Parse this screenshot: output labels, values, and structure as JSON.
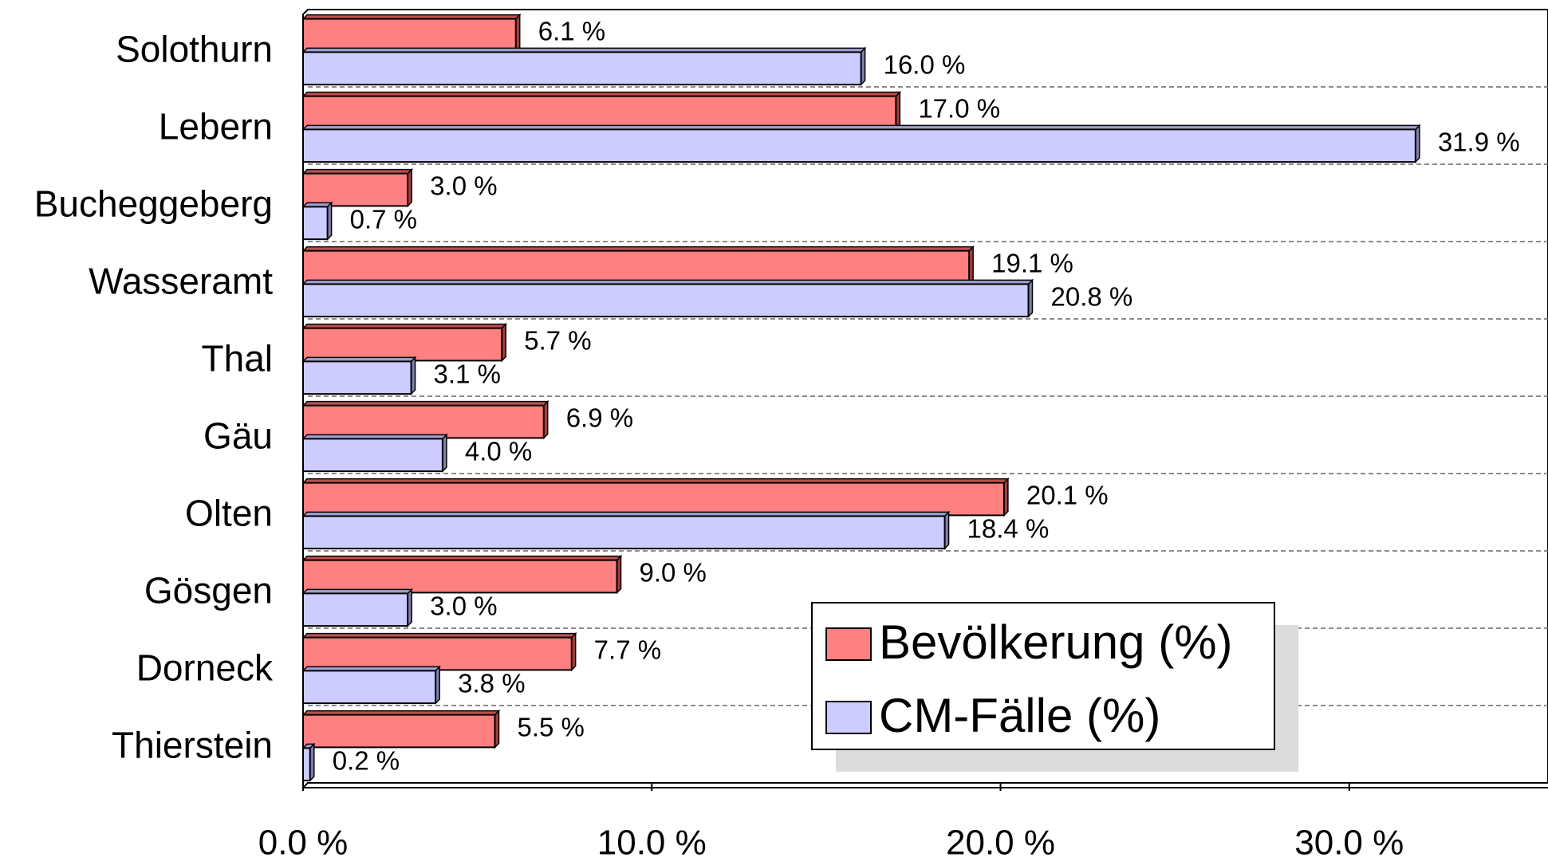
{
  "chart_data": {
    "type": "bar",
    "orientation": "horizontal",
    "categories": [
      "Solothurn",
      "Lebern",
      "Bucheggeberg",
      "Wasseramt",
      "Thal",
      "Gäu",
      "Olten",
      "Gösgen",
      "Dorneck",
      "Thierstein"
    ],
    "series": [
      {
        "name": "Bevölkerung (%)",
        "color": "#ff8080",
        "values": [
          6.1,
          17.0,
          3.0,
          19.1,
          5.7,
          6.9,
          20.1,
          9.0,
          7.7,
          5.5
        ],
        "value_labels": [
          "6.1 %",
          "17.0 %",
          "3.0 %",
          "19.1 %",
          "5.7 %",
          "6.9 %",
          "20.1 %",
          "9.0 %",
          "7.7 %",
          "5.5 %"
        ]
      },
      {
        "name": "CM-Fälle (%)",
        "color": "#ccccff",
        "values": [
          16.0,
          31.9,
          0.7,
          20.8,
          3.1,
          4.0,
          18.4,
          3.0,
          3.8,
          0.2
        ],
        "value_labels": [
          "16.0 %",
          "31.9 %",
          "0.7 %",
          "20.8 %",
          "3.1 %",
          "4.0 %",
          "18.4 %",
          "3.0 %",
          "3.8 %",
          "0.2 %"
        ]
      }
    ],
    "xlim": [
      0,
      35.7
    ],
    "xticks": [
      {
        "value": 0,
        "label": "0.0 %"
      },
      {
        "value": 10,
        "label": "10.0 %"
      },
      {
        "value": 20,
        "label": "20.0 %"
      },
      {
        "value": 30,
        "label": "30.0 %"
      }
    ],
    "grid": true,
    "legend": "lower right"
  }
}
